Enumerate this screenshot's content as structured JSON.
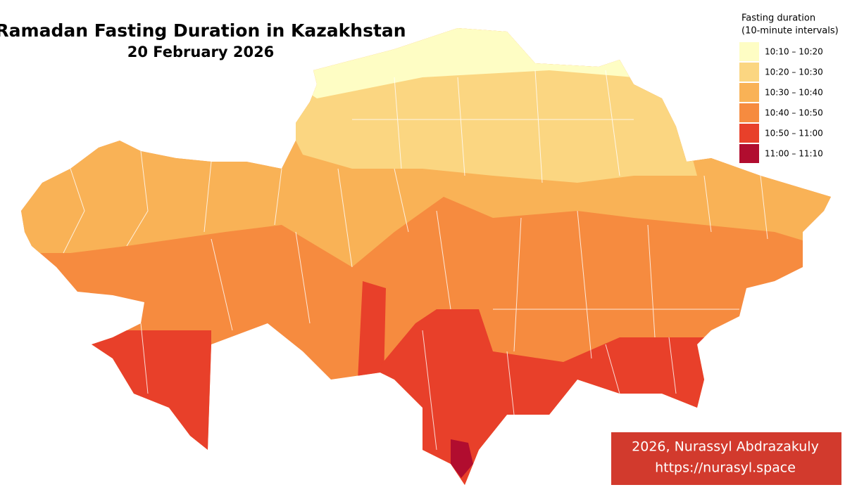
{
  "header": {
    "title": "Ramadan Fasting Duration in Kazakhstan",
    "subtitle": "20 February 2026"
  },
  "legend": {
    "title_lines": [
      "Fasting duration",
      "(10-minute intervals)"
    ],
    "items": [
      {
        "label": "10:10 – 10:20",
        "color": "#fefdc4"
      },
      {
        "label": "10:20 – 10:30",
        "color": "#fbd681"
      },
      {
        "label": "10:30 – 10:40",
        "color": "#f9b256"
      },
      {
        "label": "10:40 – 10:50",
        "color": "#f68b3f"
      },
      {
        "label": "10:50 – 11:00",
        "color": "#e8402a"
      },
      {
        "label": "11:00 – 11:10",
        "color": "#b10d2f"
      }
    ]
  },
  "credits": {
    "lines": [
      "2026, Nurassyl Abdrazakuly",
      "https://nurasyl.space"
    ]
  }
}
